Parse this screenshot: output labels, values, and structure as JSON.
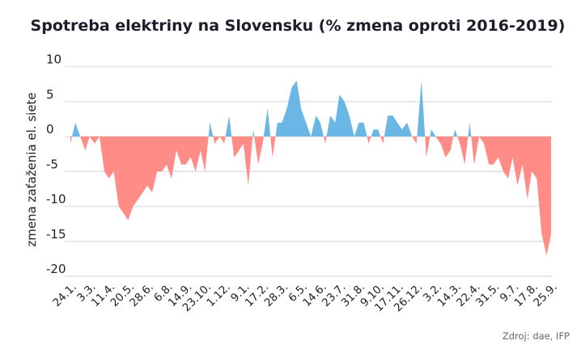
{
  "chart_data": {
    "type": "area",
    "title": "Spotreba elektriny na Slovensku (% zmena oproti 2016-2019)",
    "ylabel": "zmena zaťaženia el. siete",
    "xlabel": "",
    "source": "Zdroj: dae, IFP",
    "ylim": [
      -20,
      10
    ],
    "yticks": [
      10,
      5,
      0,
      -5,
      -10,
      -15,
      -20
    ],
    "grid": true,
    "colors": {
      "positive": "#6ab6e5",
      "negative": "#ff8c87"
    },
    "xtick_labels": [
      "24.1.",
      "3.3.",
      "11.4.",
      "20.5.",
      "28.6.",
      "6.8.",
      "14.9.",
      "23.10.",
      "1.12.",
      "9.1.",
      "17.2.",
      "28.3.",
      "6.5.",
      "14.6.",
      "23.7.",
      "31.8.",
      "9.10.",
      "17.11.",
      "26.12.",
      "3.2.",
      "14.3.",
      "22.4.",
      "31.5.",
      "9.7.",
      "17.8.",
      "25.9."
    ],
    "xtick_dates": [
      "2020-01-24",
      "2020-03-03",
      "2020-04-11",
      "2020-05-20",
      "2020-06-28",
      "2020-08-06",
      "2020-09-14",
      "2020-10-23",
      "2020-12-01",
      "2021-01-09",
      "2021-02-17",
      "2021-03-28",
      "2021-05-06",
      "2021-06-14",
      "2021-07-23",
      "2021-08-31",
      "2021-10-09",
      "2021-11-17",
      "2021-12-26",
      "2022-02-03",
      "2022-03-14",
      "2022-04-22",
      "2022-05-31",
      "2022-07-09",
      "2022-08-17",
      "2022-09-25"
    ],
    "x": [
      "2020-01-24",
      "2020-02-03",
      "2020-02-13",
      "2020-02-23",
      "2020-03-03",
      "2020-03-13",
      "2020-03-23",
      "2020-04-02",
      "2020-04-11",
      "2020-04-21",
      "2020-05-01",
      "2020-05-11",
      "2020-05-20",
      "2020-05-30",
      "2020-06-09",
      "2020-06-19",
      "2020-06-28",
      "2020-07-08",
      "2020-07-18",
      "2020-07-28",
      "2020-08-06",
      "2020-08-16",
      "2020-08-26",
      "2020-09-05",
      "2020-09-14",
      "2020-09-24",
      "2020-10-04",
      "2020-10-14",
      "2020-10-23",
      "2020-11-02",
      "2020-11-12",
      "2020-11-22",
      "2020-12-01",
      "2020-12-11",
      "2020-12-21",
      "2020-12-31",
      "2021-01-09",
      "2021-01-19",
      "2021-01-29",
      "2021-02-08",
      "2021-02-17",
      "2021-02-27",
      "2021-03-09",
      "2021-03-19",
      "2021-03-28",
      "2021-04-07",
      "2021-04-17",
      "2021-04-27",
      "2021-05-06",
      "2021-05-16",
      "2021-05-26",
      "2021-06-05",
      "2021-06-14",
      "2021-06-24",
      "2021-07-04",
      "2021-07-14",
      "2021-07-23",
      "2021-08-02",
      "2021-08-12",
      "2021-08-22",
      "2021-08-31",
      "2021-09-10",
      "2021-09-20",
      "2021-09-30",
      "2021-10-09",
      "2021-10-19",
      "2021-10-29",
      "2021-11-08",
      "2021-11-17",
      "2021-11-27",
      "2021-12-07",
      "2021-12-17",
      "2021-12-26",
      "2022-01-05",
      "2022-01-15",
      "2022-01-25",
      "2022-02-03",
      "2022-02-13",
      "2022-02-23",
      "2022-03-05",
      "2022-03-14",
      "2022-03-24",
      "2022-04-03",
      "2022-04-13",
      "2022-04-22",
      "2022-05-02",
      "2022-05-12",
      "2022-05-22",
      "2022-05-31",
      "2022-06-10",
      "2022-06-20",
      "2022-06-30",
      "2022-07-09",
      "2022-07-19",
      "2022-07-29",
      "2022-08-08",
      "2022-08-17",
      "2022-08-27",
      "2022-09-06",
      "2022-09-16",
      "2022-09-25"
    ],
    "values": [
      -1,
      2,
      0,
      -2,
      0,
      -1,
      0,
      -5,
      -6,
      -5,
      -10,
      -11,
      -12,
      -10,
      -9,
      -8,
      -7,
      -8,
      -5,
      -5,
      -4,
      -6,
      -2,
      -4,
      -4,
      -3,
      -5,
      -2,
      -5,
      2,
      -1,
      0,
      -1,
      3,
      -3,
      -2,
      -1,
      -7,
      1,
      -4,
      -1,
      4,
      -3,
      2,
      2,
      4,
      7,
      8,
      4,
      2,
      0,
      3,
      2,
      -1,
      3,
      2,
      6,
      5,
      3,
      0,
      2,
      2,
      -1,
      1,
      1,
      -1,
      3,
      3,
      2,
      1,
      2,
      0,
      -1,
      8,
      -3,
      1,
      0,
      -1,
      -3,
      -2,
      1,
      -1,
      -4,
      2,
      -4,
      0,
      -1,
      -4,
      -4,
      -3,
      -5,
      -6,
      -3,
      -7,
      -4,
      -9,
      -5,
      -6,
      -14,
      -17,
      -14
    ]
  }
}
